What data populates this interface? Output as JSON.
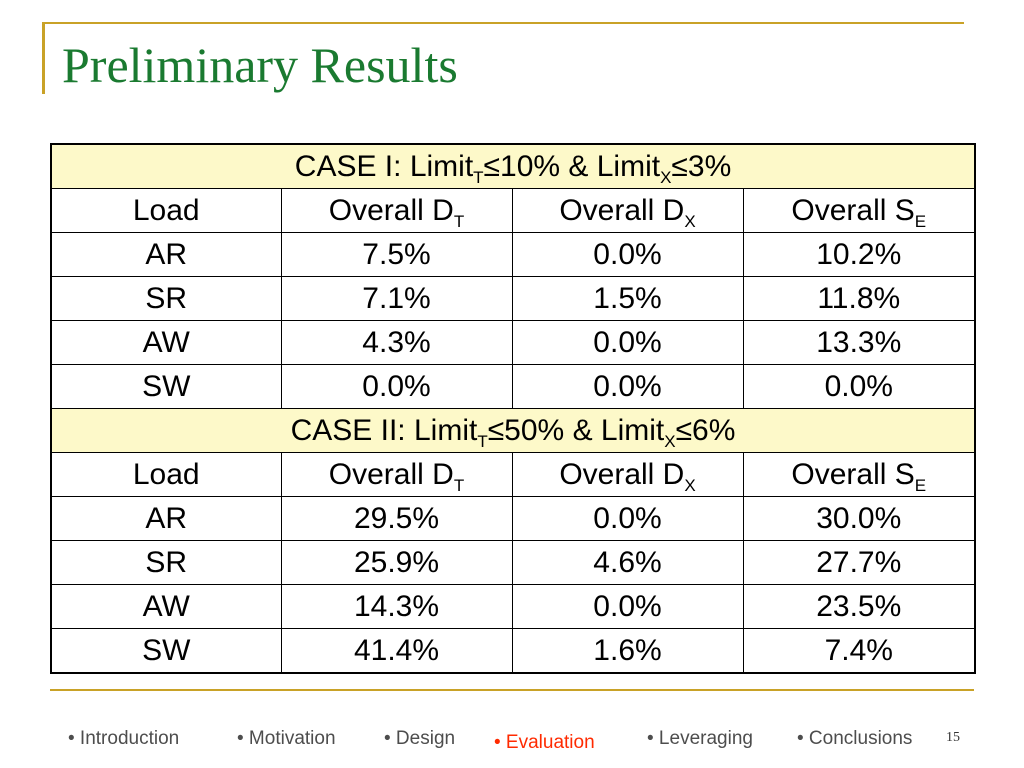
{
  "slide": {
    "title": "Preliminary Results",
    "page_number": "15"
  },
  "table": {
    "cases": [
      {
        "label": {
          "prefix": "CASE I: Limit",
          "sub1": "T",
          "mid": "≤10% & Limit",
          "sub2": "X",
          "suffix": "≤3%"
        },
        "header": {
          "load": "Load",
          "dt": {
            "text": "Overall D",
            "sub": "T"
          },
          "dx": {
            "text": "Overall D",
            "sub": "X"
          },
          "se": {
            "text": "Overall S",
            "sub": "E"
          }
        },
        "rows": [
          {
            "load": "AR",
            "dt": "7.5%",
            "dx": "0.0%",
            "se": "10.2%"
          },
          {
            "load": "SR",
            "dt": "7.1%",
            "dx": "1.5%",
            "se": "11.8%"
          },
          {
            "load": "AW",
            "dt": "4.3%",
            "dx": "0.0%",
            "se": "13.3%"
          },
          {
            "load": "SW",
            "dt": "0.0%",
            "dx": "0.0%",
            "se": "0.0%"
          }
        ]
      },
      {
        "label": {
          "prefix": "CASE II: Limit",
          "sub1": "T",
          "mid": "≤50% & Limit",
          "sub2": "X",
          "suffix": "≤6%"
        },
        "header": {
          "load": "Load",
          "dt": {
            "text": "Overall D",
            "sub": "T"
          },
          "dx": {
            "text": "Overall D",
            "sub": "X"
          },
          "se": {
            "text": "Overall S",
            "sub": "E"
          }
        },
        "rows": [
          {
            "load": "AR",
            "dt": "29.5%",
            "dx": "0.0%",
            "se": "30.0%"
          },
          {
            "load": "SR",
            "dt": "25.9%",
            "dx": "4.6%",
            "se": "27.7%"
          },
          {
            "load": "AW",
            "dt": "14.3%",
            "dx": "0.0%",
            "se": "23.5%"
          },
          {
            "load": "SW",
            "dt": "41.4%",
            "dx": "1.6%",
            "se": "7.4%"
          }
        ]
      }
    ]
  },
  "nav": {
    "items": [
      {
        "label": "• Introduction"
      },
      {
        "label": "• Motivation"
      },
      {
        "label": "• Design"
      },
      {
        "label": "• Evaluation"
      },
      {
        "label": "• Leveraging"
      },
      {
        "label": "• Conclusions"
      }
    ],
    "active_index": 3
  },
  "colors": {
    "title": "#1a7a30",
    "accent_line": "#c9a227",
    "case_row_bg": "#fdf9c9",
    "nav_text": "#4d4d4d",
    "nav_active": "#ff2a00"
  }
}
